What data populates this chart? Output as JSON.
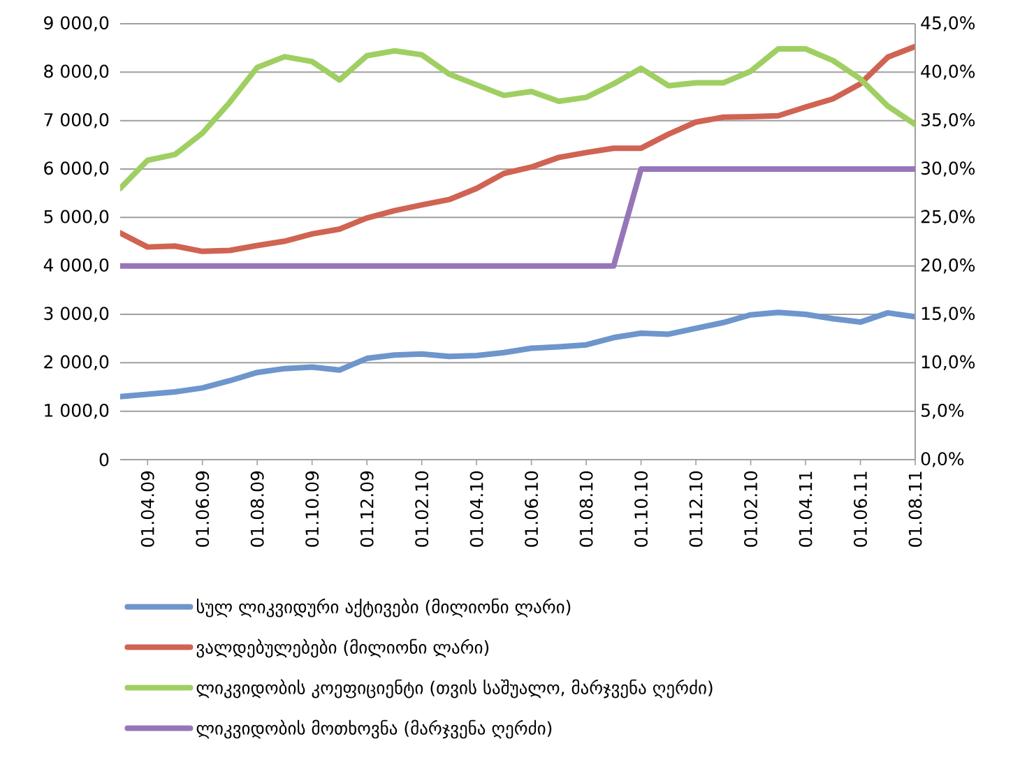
{
  "chart_data": {
    "type": "line",
    "categories": [
      null,
      "01.04.09",
      null,
      "01.06.09",
      null,
      "01.08.09",
      null,
      "01.10.09",
      null,
      "01.12.09",
      null,
      "01.02.10",
      null,
      "01.04.10",
      null,
      "01.06.10",
      null,
      "01.08.10",
      null,
      "01.10.10",
      null,
      "01.12.10",
      null,
      "01.02.10",
      null,
      "01.04.11",
      null,
      "01.06.11",
      null,
      "01.08.11"
    ],
    "series": [
      {
        "name": "სულ ლიკვიდური აქტივები (მილიონი ლარი)",
        "color": "#6e95cc",
        "values": [
          1300,
          1350,
          1400,
          1480,
          1630,
          1800,
          1880,
          1910,
          1850,
          2090,
          2160,
          2180,
          2130,
          2150,
          2210,
          2300,
          2330,
          2370,
          2520,
          2610,
          2590,
          2710,
          2830,
          2990,
          3040,
          3000,
          2910,
          2840,
          3030,
          2950
        ]
      },
      {
        "name": "ვალდებულებები (მილიონი ლარი)",
        "color": "#d06352",
        "values": [
          4680,
          4390,
          4410,
          4300,
          4320,
          4420,
          4510,
          4660,
          4760,
          4990,
          5140,
          5260,
          5370,
          5600,
          5910,
          6040,
          6240,
          6340,
          6430,
          6430,
          6720,
          6970,
          7070,
          7080,
          7100,
          7280,
          7450,
          7760,
          8310,
          8530
        ]
      },
      {
        "name": "ლიკვიდობის კოეფიციენტი (თვის საშუალო, მარჯვენა ღერძი)",
        "color": "#9fcf62",
        "axis": "y2",
        "values": [
          28.0,
          30.9,
          31.5,
          33.7,
          36.9,
          40.5,
          41.6,
          41.1,
          39.2,
          41.7,
          42.2,
          41.8,
          39.8,
          38.7,
          37.6,
          38.0,
          37.0,
          37.4,
          38.8,
          40.4,
          38.6,
          38.9,
          38.9,
          40.1,
          42.4,
          42.4,
          41.2,
          39.3,
          36.5,
          34.6
        ]
      },
      {
        "name": "ლიკვიდობის მოთხოვნა (მარჯვენა ღერძი)",
        "color": "#9676b8",
        "axis": "y2",
        "values": [
          20,
          20,
          20,
          20,
          20,
          20,
          20,
          20,
          20,
          20,
          20,
          20,
          20,
          20,
          20,
          20,
          20,
          20,
          20,
          30,
          30,
          30,
          30,
          30,
          30,
          30,
          30,
          30,
          30,
          30
        ]
      }
    ],
    "ylim": [
      0,
      9000
    ],
    "yticks": [
      0,
      {
        "value": 1000,
        "label": "1 000,0"
      },
      {
        "value": 2000,
        "label": "2 000,0"
      },
      {
        "value": 3000,
        "label": "3 000,0"
      },
      {
        "value": 4000,
        "label": "4 000,0"
      },
      {
        "value": 5000,
        "label": "5 000,0"
      },
      {
        "value": 6000,
        "label": "6 000,0"
      },
      {
        "value": 7000,
        "label": "7 000,0"
      },
      {
        "value": 8000,
        "label": "8 000,0"
      },
      {
        "value": 9000,
        "label": "9 000,0"
      }
    ],
    "y2lim": [
      0,
      45
    ],
    "y2ticks": [
      {
        "value": 0,
        "label": "0,0%"
      },
      {
        "value": 5,
        "label": "5,0%"
      },
      {
        "value": 10,
        "label": "10,0%"
      },
      {
        "value": 15,
        "label": "15,0%"
      },
      {
        "value": 20,
        "label": "20,0%"
      },
      {
        "value": 25,
        "label": "25,0%"
      },
      {
        "value": 30,
        "label": "30,0%"
      },
      {
        "value": 35,
        "label": "35,0%"
      },
      {
        "value": 40,
        "label": "40,0%"
      },
      {
        "value": 45,
        "label": "45,0%"
      }
    ],
    "grid": "y",
    "legend": "bottom"
  }
}
